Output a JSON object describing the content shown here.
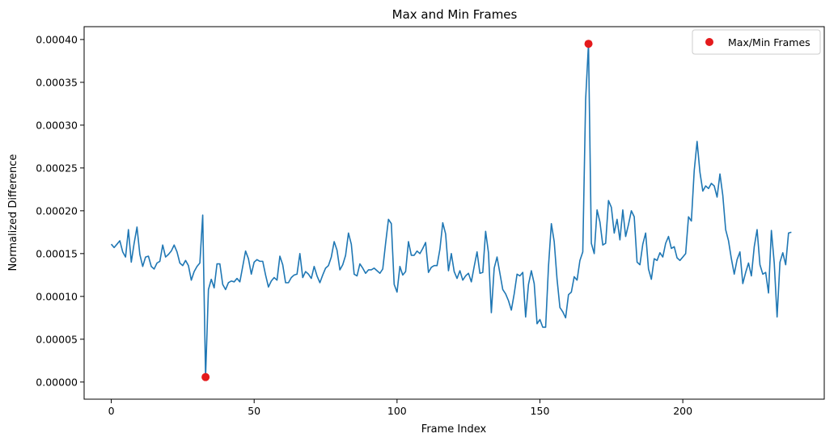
{
  "chart_data": {
    "type": "line",
    "title": "Max and Min Frames",
    "xlabel": "Frame Index",
    "ylabel": "Normalized Difference",
    "xlim": [
      -9.5,
      249.5
    ],
    "ylim": [
      -2e-05,
      0.000415
    ],
    "xticks": [
      0,
      50,
      100,
      150,
      200
    ],
    "xtick_labels": [
      "0",
      "50",
      "100",
      "150",
      "200"
    ],
    "yticks": [
      0,
      5e-05,
      0.0001,
      0.00015,
      0.0002,
      0.00025,
      0.0003,
      0.00035,
      0.0004
    ],
    "ytick_labels": [
      "0.00000",
      "0.00005",
      "0.00010",
      "0.00015",
      "0.00020",
      "0.00025",
      "0.00030",
      "0.00035",
      "0.00040"
    ],
    "grid": false,
    "legend_position": "top-right",
    "series": [
      {
        "kind": "line",
        "color": "#1f77b4",
        "values": [
          0.000161,
          0.000157,
          0.000161,
          0.000165,
          0.000152,
          0.000146,
          0.000178,
          0.00014,
          0.000162,
          0.000181,
          0.000149,
          0.000135,
          0.000146,
          0.000147,
          0.000135,
          0.000132,
          0.000139,
          0.000141,
          0.00016,
          0.000146,
          0.000149,
          0.000153,
          0.00016,
          0.000152,
          0.000139,
          0.000136,
          0.000142,
          0.000136,
          0.000119,
          0.000129,
          0.000135,
          0.000139,
          0.000195,
          6e-06,
          0.000108,
          0.00012,
          0.00011,
          0.000138,
          0.000138,
          0.000114,
          0.000108,
          0.000116,
          0.000118,
          0.000117,
          0.000121,
          0.000117,
          0.000135,
          0.000153,
          0.000144,
          0.000126,
          0.00014,
          0.000143,
          0.000141,
          0.000141,
          0.000125,
          0.000111,
          0.000118,
          0.000122,
          0.000119,
          0.000147,
          0.000137,
          0.000116,
          0.000116,
          0.000122,
          0.000125,
          0.000126,
          0.00015,
          0.000122,
          0.000129,
          0.000126,
          0.000121,
          0.000135,
          0.000124,
          0.000116,
          0.000125,
          0.000133,
          0.000136,
          0.000146,
          0.000164,
          0.000154,
          0.000131,
          0.000137,
          0.000148,
          0.000174,
          0.000161,
          0.000126,
          0.000124,
          0.000138,
          0.000133,
          0.000127,
          0.000131,
          0.000131,
          0.000133,
          0.00013,
          0.000127,
          0.000132,
          0.000162,
          0.00019,
          0.000185,
          0.000114,
          0.000105,
          0.000135,
          0.000125,
          0.000129,
          0.000164,
          0.000148,
          0.000148,
          0.000153,
          0.00015,
          0.000156,
          0.000163,
          0.000128,
          0.000134,
          0.000136,
          0.000136,
          0.000155,
          0.000186,
          0.000173,
          0.00013,
          0.00015,
          0.000129,
          0.000121,
          0.00013,
          0.000119,
          0.000124,
          0.000127,
          0.000117,
          0.000135,
          0.000152,
          0.000127,
          0.000128,
          0.000176,
          0.000151,
          8.1e-05,
          0.000133,
          0.000146,
          0.000127,
          0.000108,
          0.000103,
          9.5e-05,
          8.4e-05,
          0.000103,
          0.000126,
          0.000124,
          0.000128,
          7.6e-05,
          0.000114,
          0.00013,
          0.000115,
          6.8e-05,
          7.3e-05,
          6.4e-05,
          6.4e-05,
          0.000135,
          0.000185,
          0.000164,
          0.00012,
          8.7e-05,
          8.2e-05,
          7.5e-05,
          0.000102,
          0.000105,
          0.000123,
          0.000119,
          0.000142,
          0.000152,
          0.00033,
          0.000395,
          0.000162,
          0.00015,
          0.000201,
          0.000187,
          0.00016,
          0.000162,
          0.000212,
          0.000204,
          0.000174,
          0.00019,
          0.000166,
          0.000201,
          0.00017,
          0.000184,
          0.0002,
          0.000193,
          0.00014,
          0.000137,
          0.000161,
          0.000174,
          0.000132,
          0.00012,
          0.000144,
          0.000142,
          0.000151,
          0.000146,
          0.000162,
          0.00017,
          0.000156,
          0.000158,
          0.000145,
          0.000142,
          0.000146,
          0.00015,
          0.000193,
          0.000188,
          0.000247,
          0.000281,
          0.000245,
          0.000223,
          0.000229,
          0.000226,
          0.000232,
          0.000229,
          0.000216,
          0.000243,
          0.000218,
          0.000178,
          0.000165,
          0.000144,
          0.000126,
          0.000143,
          0.000152,
          0.000115,
          0.000128,
          0.000139,
          0.000124,
          0.000158,
          0.000178,
          0.000137,
          0.000126,
          0.000128,
          0.000104,
          0.000177,
          0.000139,
          7.6e-05,
          0.00014,
          0.000151,
          0.000137,
          0.000174,
          0.000175
        ]
      },
      {
        "kind": "scatter",
        "name": "Max/Min Frames",
        "color": "#e41a1c",
        "points": [
          [
            33,
            5.8e-06
          ],
          [
            167,
            0.000395
          ]
        ]
      }
    ]
  }
}
